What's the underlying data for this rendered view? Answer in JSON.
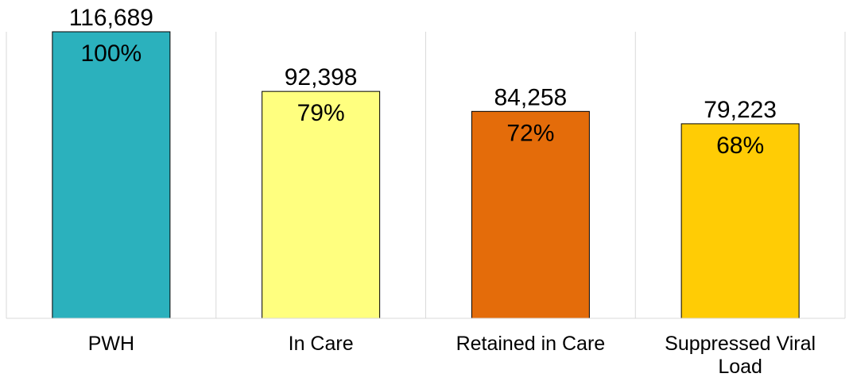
{
  "chart_data": {
    "type": "bar",
    "categories": [
      "PWH",
      "In Care",
      "Retained in Care",
      "Suppressed Viral Load"
    ],
    "category_lines": [
      [
        "PWH"
      ],
      [
        "In Care"
      ],
      [
        "Retained in Care"
      ],
      [
        "Suppressed Viral",
        "Load"
      ]
    ],
    "values": [
      116689,
      92398,
      84258,
      79223
    ],
    "value_labels": [
      "116,689",
      "92,398",
      "84,258",
      "79,223"
    ],
    "percent_labels": [
      "100%",
      "79%",
      "72%",
      "68%"
    ],
    "colors": [
      "#2bb1bd",
      "#ffff7f",
      "#e46c0a",
      "#ffcc05"
    ],
    "ylim": [
      0,
      116689
    ],
    "grid": "vertical separators",
    "legend": "none"
  }
}
